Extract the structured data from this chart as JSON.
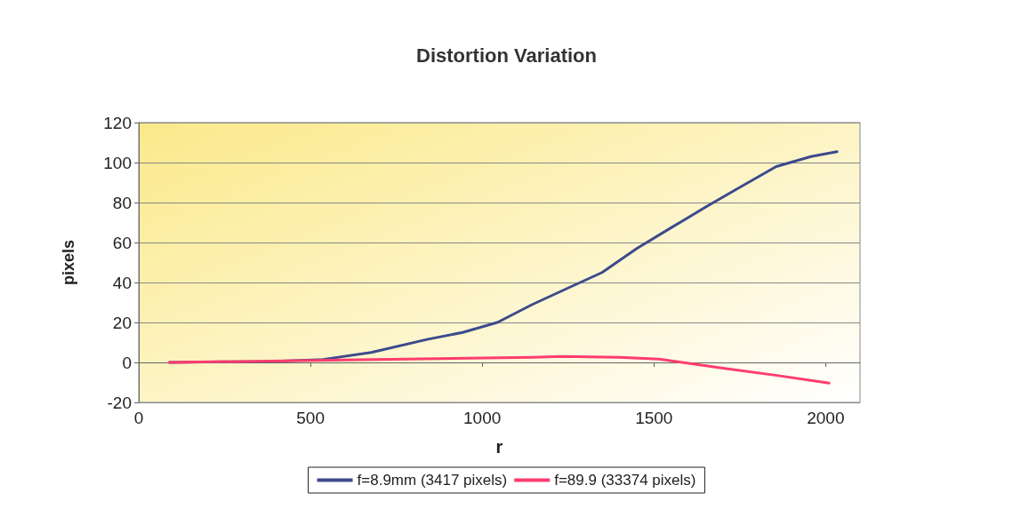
{
  "chart_data": {
    "type": "line",
    "title": "Distortion Variation",
    "xlabel": "r",
    "ylabel": "pixels",
    "xlim": [
      0,
      2100
    ],
    "xticks": [
      0,
      500,
      1000,
      1500,
      2000
    ],
    "ylim": [
      -20,
      120
    ],
    "yticks": [
      -20,
      0,
      20,
      40,
      60,
      80,
      100,
      120
    ],
    "grid": "y",
    "legend": "bottom",
    "marker": "none",
    "line_style": "solid",
    "series": [
      {
        "name": "f=8.9mm (3417 pixels)",
        "color": "#3c4a8c",
        "x": [
          89,
          385,
          537,
          677,
          842,
          943,
          1044,
          1146,
          1247,
          1349,
          1450,
          1551,
          1653,
          1754,
          1856,
          1957,
          2033
        ],
        "values": [
          0,
          0.5,
          1.5,
          5,
          11.6,
          15,
          20,
          29,
          37,
          45,
          57,
          67.5,
          78,
          88,
          98,
          103,
          105.4
        ]
      },
      {
        "name": "f=89.9 (33374 pixels)",
        "color": "#ff3c6e",
        "x": [
          89,
          640,
          1147,
          1230,
          1400,
          1515,
          1706,
          1858,
          2010
        ],
        "values": [
          0,
          1.3,
          2.6,
          3,
          2.6,
          1.7,
          -3,
          -6.5,
          -10.3
        ]
      }
    ]
  }
}
